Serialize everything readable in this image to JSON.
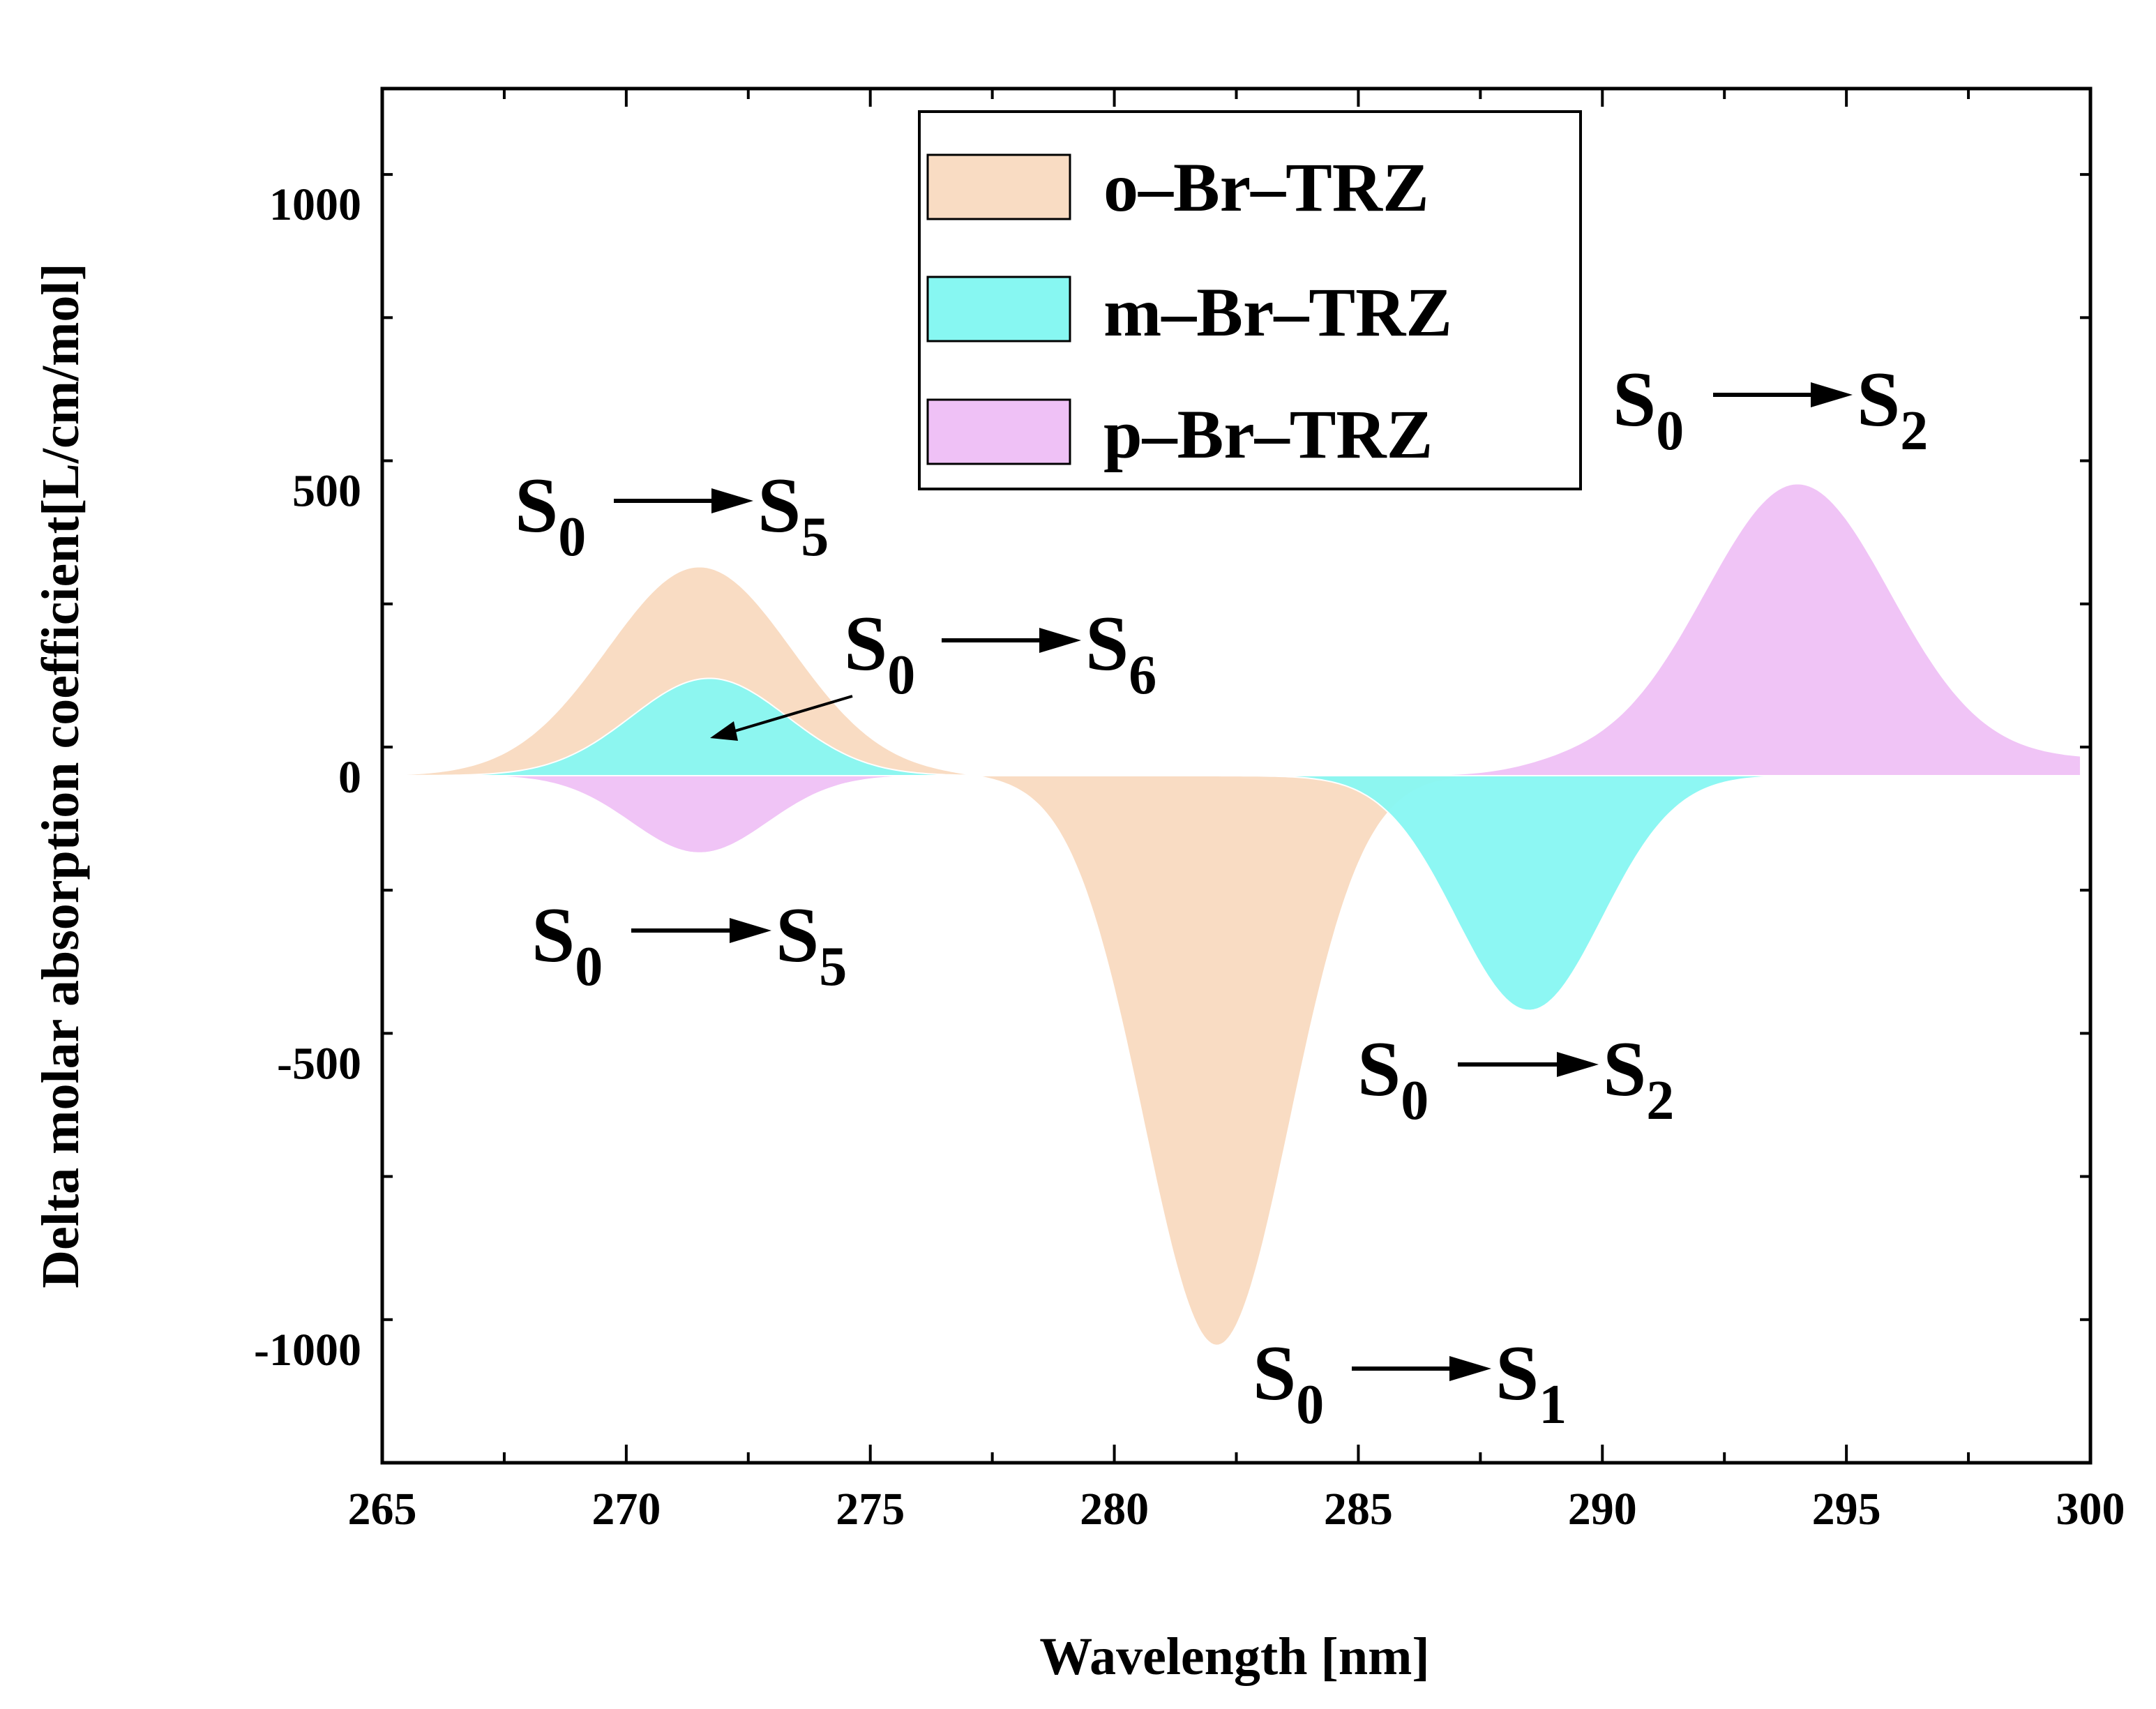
{
  "chart_data": {
    "type": "area",
    "title": "",
    "xlabel": "Wavelength [nm]",
    "ylabel": "Delta molar absorption coefficient[L/cm/mol]",
    "xlim": [
      265,
      300
    ],
    "ylim": [
      -1200,
      1200
    ],
    "x_ticks": [
      265,
      270,
      275,
      280,
      285,
      290,
      295,
      300
    ],
    "x_tick_labels": [
      "265",
      "270",
      "275",
      "280",
      "285",
      "290",
      "295",
      "300"
    ],
    "y_ticks": [
      -1000,
      -500,
      0,
      500,
      1000
    ],
    "y_tick_labels": [
      "-1000",
      "-500",
      "0",
      "500",
      "1000"
    ],
    "legend": {
      "position": "top-center"
    },
    "series": [
      {
        "name": "o–Br–TRZ",
        "color": "#f9dcc3",
        "peaks": [
          {
            "center": 271.5,
            "amplitude": 365,
            "width": 1.9
          },
          {
            "center": 282.1,
            "amplitude": -995,
            "width": 1.5
          }
        ],
        "range": [
          265.5,
          287
        ]
      },
      {
        "name": "m–Br–TRZ",
        "color": "#87f7f2",
        "peaks": [
          {
            "center": 271.7,
            "amplitude": 170,
            "width": 1.6
          },
          {
            "center": 288.5,
            "amplitude": -410,
            "width": 1.5
          }
        ],
        "range": [
          265.5,
          296
        ]
      },
      {
        "name": "p–Br–TRZ",
        "color": "#efc1f6",
        "peaks": [
          {
            "center": 271.5,
            "amplitude": -135,
            "width": 1.4
          },
          {
            "center": 294.0,
            "amplitude": 480,
            "width": 1.9
          }
        ],
        "baseline_rise": 30,
        "range": [
          265.5,
          299.8
        ]
      }
    ],
    "annotations": [
      {
        "id": "o-s0s5",
        "from": "S",
        "from_sub": "0",
        "to": "S",
        "to_sub": "5"
      },
      {
        "id": "m-s0s6",
        "from": "S",
        "from_sub": "0",
        "to": "S",
        "to_sub": "6",
        "pointer_target": [
          271.8,
          75
        ]
      },
      {
        "id": "p-s0s5",
        "from": "S",
        "from_sub": "0",
        "to": "S",
        "to_sub": "5"
      },
      {
        "id": "o-s0s1",
        "from": "S",
        "from_sub": "0",
        "to": "S",
        "to_sub": "1"
      },
      {
        "id": "m-s0s2",
        "from": "S",
        "from_sub": "0",
        "to": "S",
        "to_sub": "2"
      },
      {
        "id": "p-s0s2",
        "from": "S",
        "from_sub": "0",
        "to": "S",
        "to_sub": "2"
      }
    ]
  }
}
